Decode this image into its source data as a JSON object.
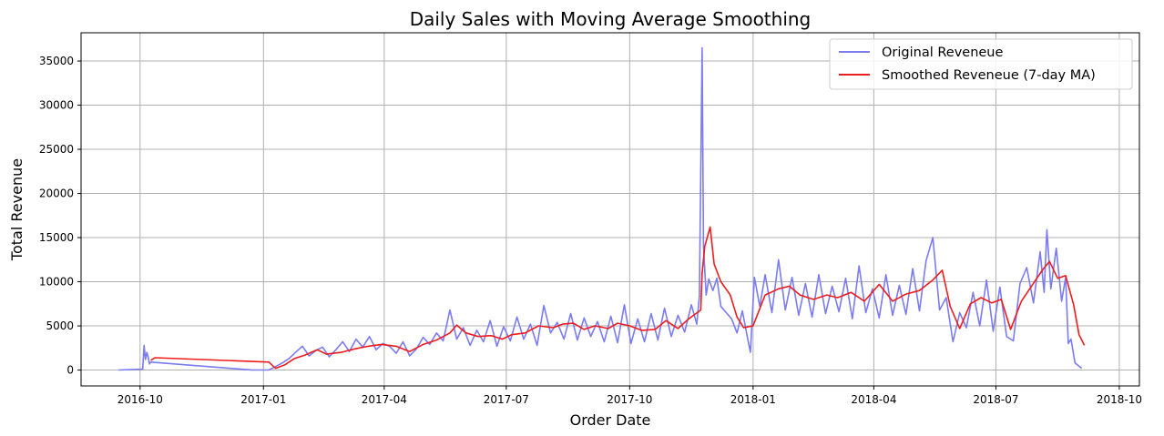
{
  "chart_data": {
    "type": "line",
    "title": "Daily Sales with Moving Average Smoothing",
    "xlabel": "Order Date",
    "ylabel": "Total Revenue",
    "x_is_date": true,
    "xlim": [
      "2016-08-18",
      "2018-10-16"
    ],
    "ylim": [
      -1800,
      38200
    ],
    "x_ticks": [
      {
        "label": "2016-10",
        "date": "2016-10-01"
      },
      {
        "label": "2017-01",
        "date": "2017-01-01"
      },
      {
        "label": "2017-04",
        "date": "2017-04-01"
      },
      {
        "label": "2017-07",
        "date": "2017-07-01"
      },
      {
        "label": "2017-10",
        "date": "2017-10-01"
      },
      {
        "label": "2018-01",
        "date": "2018-01-01"
      },
      {
        "label": "2018-04",
        "date": "2018-04-01"
      },
      {
        "label": "2018-07",
        "date": "2018-07-01"
      },
      {
        "label": "2018-10",
        "date": "2018-10-01"
      }
    ],
    "y_ticks": [
      0,
      5000,
      10000,
      15000,
      20000,
      25000,
      30000,
      35000
    ],
    "y_tick_labels": [
      "0",
      "5000",
      "10000",
      "15000",
      "20000",
      "25000",
      "30000",
      "35000"
    ],
    "grid": true,
    "legend_position": "top-right",
    "series": [
      {
        "name": "Original Reveneue",
        "color": "#7b7bf2",
        "points": [
          [
            "2016-09-15",
            0
          ],
          [
            "2016-10-03",
            100
          ],
          [
            "2016-10-04",
            2800
          ],
          [
            "2016-10-05",
            1200
          ],
          [
            "2016-10-06",
            2000
          ],
          [
            "2016-10-07",
            1500
          ],
          [
            "2016-10-08",
            700
          ],
          [
            "2016-10-09",
            900
          ],
          [
            "2016-12-23",
            10
          ],
          [
            "2017-01-05",
            0
          ],
          [
            "2017-01-10",
            400
          ],
          [
            "2017-01-15",
            800
          ],
          [
            "2017-01-20",
            1300
          ],
          [
            "2017-01-25",
            2000
          ],
          [
            "2017-01-30",
            2700
          ],
          [
            "2017-02-04",
            1600
          ],
          [
            "2017-02-09",
            2200
          ],
          [
            "2017-02-14",
            2600
          ],
          [
            "2017-02-19",
            1500
          ],
          [
            "2017-02-24",
            2300
          ],
          [
            "2017-03-01",
            3200
          ],
          [
            "2017-03-06",
            2100
          ],
          [
            "2017-03-11",
            3500
          ],
          [
            "2017-03-16",
            2600
          ],
          [
            "2017-03-21",
            3800
          ],
          [
            "2017-03-26",
            2300
          ],
          [
            "2017-03-31",
            3000
          ],
          [
            "2017-04-05",
            2700
          ],
          [
            "2017-04-10",
            1900
          ],
          [
            "2017-04-15",
            3200
          ],
          [
            "2017-04-20",
            1600
          ],
          [
            "2017-04-25",
            2400
          ],
          [
            "2017-04-30",
            3700
          ],
          [
            "2017-05-05",
            2900
          ],
          [
            "2017-05-10",
            4200
          ],
          [
            "2017-05-15",
            3300
          ],
          [
            "2017-05-20",
            6800
          ],
          [
            "2017-05-25",
            3500
          ],
          [
            "2017-05-30",
            4800
          ],
          [
            "2017-06-04",
            2800
          ],
          [
            "2017-06-09",
            4500
          ],
          [
            "2017-06-14",
            3200
          ],
          [
            "2017-06-19",
            5600
          ],
          [
            "2017-06-24",
            2700
          ],
          [
            "2017-06-29",
            4900
          ],
          [
            "2017-07-04",
            3300
          ],
          [
            "2017-07-09",
            6000
          ],
          [
            "2017-07-14",
            3500
          ],
          [
            "2017-07-19",
            5200
          ],
          [
            "2017-07-24",
            2800
          ],
          [
            "2017-07-29",
            7300
          ],
          [
            "2017-08-03",
            4200
          ],
          [
            "2017-08-08",
            5400
          ],
          [
            "2017-08-13",
            3500
          ],
          [
            "2017-08-18",
            6400
          ],
          [
            "2017-08-23",
            3400
          ],
          [
            "2017-08-28",
            5900
          ],
          [
            "2017-09-02",
            3800
          ],
          [
            "2017-09-07",
            5500
          ],
          [
            "2017-09-12",
            3200
          ],
          [
            "2017-09-17",
            6100
          ],
          [
            "2017-09-22",
            3100
          ],
          [
            "2017-09-27",
            7400
          ],
          [
            "2017-10-02",
            3000
          ],
          [
            "2017-10-07",
            5800
          ],
          [
            "2017-10-12",
            3200
          ],
          [
            "2017-10-17",
            6400
          ],
          [
            "2017-10-22",
            3400
          ],
          [
            "2017-10-27",
            7000
          ],
          [
            "2017-11-01",
            3800
          ],
          [
            "2017-11-06",
            6200
          ],
          [
            "2017-11-11",
            4300
          ],
          [
            "2017-11-16",
            7400
          ],
          [
            "2017-11-20",
            5200
          ],
          [
            "2017-11-22",
            8400
          ],
          [
            "2017-11-24",
            36500
          ],
          [
            "2017-11-25",
            14000
          ],
          [
            "2017-11-27",
            8500
          ],
          [
            "2017-11-29",
            10300
          ],
          [
            "2017-12-02",
            9000
          ],
          [
            "2017-12-05",
            10400
          ],
          [
            "2017-12-08",
            7200
          ],
          [
            "2017-12-12",
            6500
          ],
          [
            "2017-12-16",
            5800
          ],
          [
            "2017-12-20",
            4200
          ],
          [
            "2017-12-24",
            6700
          ],
          [
            "2017-12-28",
            3500
          ],
          [
            "2017-12-30",
            2000
          ],
          [
            "2018-01-02",
            10500
          ],
          [
            "2018-01-06",
            7200
          ],
          [
            "2018-01-10",
            10800
          ],
          [
            "2018-01-15",
            6500
          ],
          [
            "2018-01-20",
            12500
          ],
          [
            "2018-01-25",
            6800
          ],
          [
            "2018-01-30",
            10500
          ],
          [
            "2018-02-04",
            6200
          ],
          [
            "2018-02-09",
            9800
          ],
          [
            "2018-02-14",
            6000
          ],
          [
            "2018-02-19",
            10800
          ],
          [
            "2018-02-24",
            6400
          ],
          [
            "2018-03-01",
            9500
          ],
          [
            "2018-03-06",
            6600
          ],
          [
            "2018-03-11",
            10400
          ],
          [
            "2018-03-16",
            5800
          ],
          [
            "2018-03-21",
            11800
          ],
          [
            "2018-03-26",
            6500
          ],
          [
            "2018-03-31",
            9200
          ],
          [
            "2018-04-05",
            5900
          ],
          [
            "2018-04-10",
            10800
          ],
          [
            "2018-04-15",
            6200
          ],
          [
            "2018-04-20",
            9600
          ],
          [
            "2018-04-25",
            6300
          ],
          [
            "2018-04-30",
            11500
          ],
          [
            "2018-05-05",
            6700
          ],
          [
            "2018-05-10",
            12400
          ],
          [
            "2018-05-15",
            15000
          ],
          [
            "2018-05-20",
            6800
          ],
          [
            "2018-05-25",
            8200
          ],
          [
            "2018-05-30",
            3200
          ],
          [
            "2018-06-04",
            6500
          ],
          [
            "2018-06-09",
            4800
          ],
          [
            "2018-06-14",
            8800
          ],
          [
            "2018-06-19",
            5000
          ],
          [
            "2018-06-24",
            10200
          ],
          [
            "2018-06-29",
            4400
          ],
          [
            "2018-07-04",
            9400
          ],
          [
            "2018-07-09",
            3800
          ],
          [
            "2018-07-14",
            3300
          ],
          [
            "2018-07-19",
            9800
          ],
          [
            "2018-07-24",
            11600
          ],
          [
            "2018-07-29",
            7600
          ],
          [
            "2018-08-03",
            13400
          ],
          [
            "2018-08-06",
            8800
          ],
          [
            "2018-08-08",
            15900
          ],
          [
            "2018-08-11",
            9200
          ],
          [
            "2018-08-15",
            13800
          ],
          [
            "2018-08-19",
            7800
          ],
          [
            "2018-08-22",
            10500
          ],
          [
            "2018-08-24",
            3000
          ],
          [
            "2018-08-26",
            3500
          ],
          [
            "2018-08-29",
            800
          ],
          [
            "2018-09-03",
            200
          ]
        ]
      },
      {
        "name": "Smoothed Reveneue (7-day MA)",
        "color": "#ee1c1c",
        "points": [
          [
            "2016-10-09",
            1100
          ],
          [
            "2016-10-12",
            1400
          ],
          [
            "2017-01-05",
            900
          ],
          [
            "2017-01-10",
            200
          ],
          [
            "2017-01-17",
            600
          ],
          [
            "2017-01-24",
            1300
          ],
          [
            "2017-02-01",
            1700
          ],
          [
            "2017-02-10",
            2300
          ],
          [
            "2017-02-17",
            1800
          ],
          [
            "2017-02-28",
            2000
          ],
          [
            "2017-03-10",
            2400
          ],
          [
            "2017-03-20",
            2700
          ],
          [
            "2017-03-30",
            2900
          ],
          [
            "2017-04-10",
            2700
          ],
          [
            "2017-04-20",
            2100
          ],
          [
            "2017-04-30",
            2900
          ],
          [
            "2017-05-10",
            3400
          ],
          [
            "2017-05-20",
            4200
          ],
          [
            "2017-05-25",
            5100
          ],
          [
            "2017-06-01",
            4200
          ],
          [
            "2017-06-10",
            3800
          ],
          [
            "2017-06-20",
            3900
          ],
          [
            "2017-06-28",
            3500
          ],
          [
            "2017-07-05",
            4000
          ],
          [
            "2017-07-15",
            4200
          ],
          [
            "2017-07-25",
            5000
          ],
          [
            "2017-08-05",
            4800
          ],
          [
            "2017-08-12",
            5200
          ],
          [
            "2017-08-20",
            5300
          ],
          [
            "2017-08-28",
            4600
          ],
          [
            "2017-09-05",
            5000
          ],
          [
            "2017-09-15",
            4700
          ],
          [
            "2017-09-22",
            5300
          ],
          [
            "2017-10-01",
            5000
          ],
          [
            "2017-10-10",
            4500
          ],
          [
            "2017-10-20",
            4600
          ],
          [
            "2017-10-28",
            5600
          ],
          [
            "2017-11-06",
            4700
          ],
          [
            "2017-11-14",
            5800
          ],
          [
            "2017-11-23",
            6800
          ],
          [
            "2017-11-24",
            11000
          ],
          [
            "2017-11-26",
            14000
          ],
          [
            "2017-11-30",
            16200
          ],
          [
            "2017-12-03",
            12000
          ],
          [
            "2017-12-08",
            10000
          ],
          [
            "2017-12-15",
            8500
          ],
          [
            "2017-12-20",
            6000
          ],
          [
            "2017-12-25",
            4800
          ],
          [
            "2018-01-01",
            5000
          ],
          [
            "2018-01-10",
            8500
          ],
          [
            "2018-01-20",
            9200
          ],
          [
            "2018-01-28",
            9500
          ],
          [
            "2018-02-05",
            8500
          ],
          [
            "2018-02-15",
            8000
          ],
          [
            "2018-02-25",
            8500
          ],
          [
            "2018-03-05",
            8200
          ],
          [
            "2018-03-15",
            8800
          ],
          [
            "2018-03-25",
            7800
          ],
          [
            "2018-04-05",
            9700
          ],
          [
            "2018-04-15",
            7800
          ],
          [
            "2018-04-25",
            8600
          ],
          [
            "2018-05-05",
            9000
          ],
          [
            "2018-05-15",
            10200
          ],
          [
            "2018-05-22",
            11300
          ],
          [
            "2018-05-28",
            7200
          ],
          [
            "2018-06-04",
            4700
          ],
          [
            "2018-06-12",
            7500
          ],
          [
            "2018-06-20",
            8200
          ],
          [
            "2018-06-28",
            7600
          ],
          [
            "2018-07-05",
            8000
          ],
          [
            "2018-07-12",
            4600
          ],
          [
            "2018-07-20",
            7800
          ],
          [
            "2018-07-28",
            9600
          ],
          [
            "2018-08-05",
            11400
          ],
          [
            "2018-08-10",
            12300
          ],
          [
            "2018-08-16",
            10400
          ],
          [
            "2018-08-22",
            10700
          ],
          [
            "2018-08-28",
            7400
          ],
          [
            "2018-09-01",
            4000
          ],
          [
            "2018-09-05",
            2800
          ]
        ]
      }
    ]
  }
}
